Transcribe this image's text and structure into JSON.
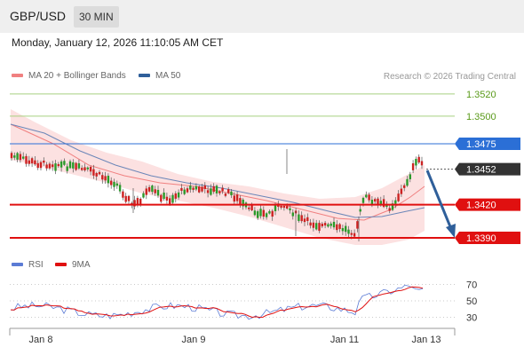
{
  "header": {
    "symbol": "GBP/USD",
    "timeframe": "30 MIN"
  },
  "timestamp": "Monday, January 12, 2026 11:10:05 AM CET",
  "legend": {
    "ma20_bb": {
      "label": "MA 20 + Bollinger Bands",
      "color": "#f08080"
    },
    "ma50": {
      "label": "MA 50",
      "color": "#2f5f9a"
    }
  },
  "credit": "Research © 2026 Trading Central",
  "levels": [
    {
      "value": "1.3520",
      "style": "text",
      "color": "#5a9a1a",
      "line": "#a8d080"
    },
    {
      "value": "1.3500",
      "style": "text",
      "color": "#5a9a1a",
      "line": "#a8d080"
    },
    {
      "value": "1.3475",
      "style": "badge",
      "color": "#2b6fd6",
      "line": "#2b6fd6"
    },
    {
      "value": "1.3452",
      "style": "badge",
      "color": "#333333",
      "line": "#555555"
    },
    {
      "value": "1.3420",
      "style": "badge",
      "color": "#e01010",
      "line": "#e01010"
    },
    {
      "value": "1.3390",
      "style": "badge",
      "color": "#e01010",
      "line": "#e01010"
    }
  ],
  "rsi_legend": {
    "rsi": {
      "label": "RSI",
      "color": "#5b7bd5"
    },
    "ma9": {
      "label": "9MA",
      "color": "#e01010"
    }
  },
  "rsi_ticks": [
    "70",
    "50",
    "30"
  ],
  "x_ticks": [
    "Jan 8",
    "Jan 9",
    "Jan 11",
    "Jan 13"
  ],
  "colors": {
    "up": "#2a9a2a",
    "down": "#cc2222",
    "arrow": "#2f5f9a"
  }
}
